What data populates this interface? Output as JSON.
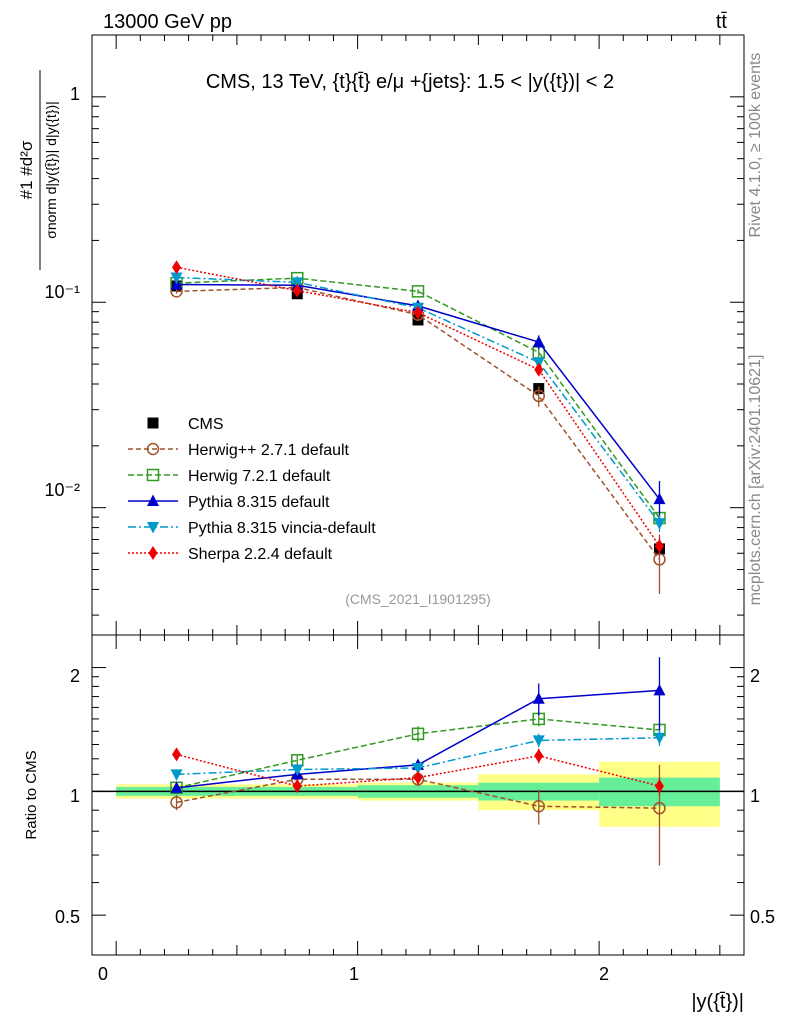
{
  "header": {
    "energy_label": "13000 GeV pp",
    "process_label": "tt̄"
  },
  "side": {
    "rivet_label": "Rivet 4.1.0, ≥ 100k events",
    "source_label": "mcplots.cern.ch [arXiv:2401.10621]"
  },
  "chart_data": [
    {
      "type": "line",
      "title": "CMS, 13 TeV, {t}{t̄} e/μ +{jets}: 1.5 < |y({t})| < 2",
      "ylabel_numerator": "#1 #d²σ",
      "ylabel_denominator": "σnorm d|y({t̄})| d|y({t})|",
      "yscale": "log",
      "ylim": [
        0.0024,
        2.0
      ],
      "ytick_labels": [
        "1",
        "10⁻¹",
        "10⁻²"
      ],
      "xlim": [
        -0.1,
        2.6
      ],
      "analysis_label": "(CMS_2021_I1901295)",
      "x": [
        0.25,
        0.75,
        1.25,
        1.75,
        2.25
      ],
      "series": [
        {
          "name": "CMS",
          "color": "#000000",
          "marker": "square-filled",
          "dash": "none",
          "values": [
            0.12,
            0.11,
            0.082,
            0.038,
            0.0063
          ],
          "err": [
            0.003,
            0.003,
            0.003,
            0.002,
            0.0005
          ]
        },
        {
          "name": "Herwig++ 2.7.1 default",
          "color": "#a0522d",
          "marker": "circle-open",
          "dash": "5,3",
          "values": [
            0.113,
            0.118,
            0.087,
            0.035,
            0.0056
          ],
          "err": [
            0.003,
            0.003,
            0.003,
            0.004,
            0.0018
          ]
        },
        {
          "name": "Herwig 7.2.1 default",
          "color": "#339922",
          "marker": "square-open",
          "dash": "6,3",
          "values": [
            0.124,
            0.131,
            0.113,
            0.057,
            0.0089
          ],
          "err": [
            0.003,
            0.003,
            0.003,
            0.003,
            0.0008
          ]
        },
        {
          "name": "Pythia 8.315 default",
          "color": "#0000cc",
          "marker": "triangle-up",
          "dash": "none",
          "values": [
            0.122,
            0.121,
            0.096,
            0.064,
            0.011
          ],
          "err": [
            0.003,
            0.003,
            0.003,
            0.005,
            0.0025
          ]
        },
        {
          "name": "Pythia 8.315 vincia-default",
          "color": "#0099cc",
          "marker": "triangle-down",
          "dash": "8,3,2,3",
          "values": [
            0.132,
            0.125,
            0.094,
            0.051,
            0.0084
          ],
          "err": [
            0.003,
            0.003,
            0.003,
            0.003,
            0.0008
          ]
        },
        {
          "name": "Sherpa 2.2.4 default",
          "color": "#ee0000",
          "marker": "diamond",
          "dash": "2,2",
          "values": [
            0.148,
            0.114,
            0.089,
            0.047,
            0.0065
          ],
          "err": [
            0.003,
            0.003,
            0.003,
            0.003,
            0.0006
          ]
        }
      ]
    },
    {
      "type": "line",
      "ylabel": "Ratio to CMS",
      "xlabel": "|y({t̄})|",
      "ylim": [
        0.4,
        2.4
      ],
      "yscale": "log",
      "ytick_labels": [
        "0.5",
        "1",
        "2"
      ],
      "ytick_values": [
        0.5,
        1,
        2
      ],
      "xtick_labels": [
        "0",
        "1",
        "2"
      ],
      "xtick_values": [
        0,
        1,
        2
      ],
      "bin_edges": [
        0,
        0.5,
        1.0,
        1.5,
        2.0,
        2.5
      ],
      "band_inner": [
        0.025,
        0.025,
        0.035,
        0.05,
        0.08
      ],
      "band_outer": [
        0.04,
        0.04,
        0.05,
        0.1,
        0.18
      ],
      "band_colors": {
        "inner": "#66ee99",
        "outer": "#ffff88"
      },
      "series": [
        {
          "name": "Herwig++ 2.7.1 default",
          "values": [
            0.94,
            1.07,
            1.07,
            0.92,
            0.91
          ],
          "err": [
            0.04,
            0.03,
            0.04,
            0.09,
            0.25
          ]
        },
        {
          "name": "Herwig 7.2.1 default",
          "values": [
            1.02,
            1.19,
            1.38,
            1.5,
            1.41
          ],
          "err": [
            0.03,
            0.04,
            0.06,
            0.06,
            0.06
          ]
        },
        {
          "name": "Pythia 8.315 default",
          "values": [
            1.02,
            1.1,
            1.16,
            1.68,
            1.76
          ],
          "err": [
            0.03,
            0.03,
            0.03,
            0.15,
            0.36
          ]
        },
        {
          "name": "Pythia 8.315 vincia-default",
          "values": [
            1.1,
            1.13,
            1.14,
            1.33,
            1.35
          ],
          "err": [
            0.03,
            0.03,
            0.03,
            0.05,
            0.06
          ]
        },
        {
          "name": "Sherpa 2.2.4 default",
          "values": [
            1.23,
            1.03,
            1.08,
            1.22,
            1.03
          ],
          "err": [
            0.04,
            0.03,
            0.03,
            0.05,
            0.05
          ]
        }
      ]
    }
  ]
}
